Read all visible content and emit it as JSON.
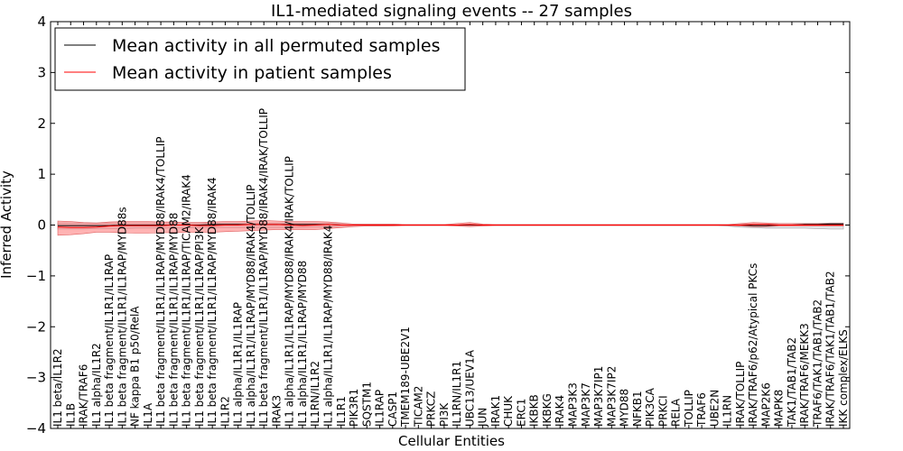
{
  "chart_data": {
    "type": "line",
    "title": "IL1-mediated signaling events -- 27 samples",
    "xlabel": "Cellular Entities",
    "ylabel": "Inferred Activity",
    "ylim": [
      -4,
      4
    ],
    "yticks": [
      -4,
      -3,
      -2,
      -1,
      0,
      1,
      2,
      3,
      4
    ],
    "ytick_labels": [
      "−4",
      "−3",
      "−2",
      "−1",
      "0",
      "1",
      "2",
      "3",
      "4"
    ],
    "legend_position": "top-left",
    "categories": [
      "IL1 beta/IL1R2",
      "IL1B",
      "IRAK/TRAF6",
      "IL1 alpha/IL1R2",
      "IL1 beta fragment/IL1R1/IL1RAP",
      "IL1 beta fragment/IL1R1/IL1RAP/MYD88s",
      "NF kappa B1 p50/RelA",
      "IL1A",
      "IL1 beta fragment/IL1R1/IL1RAP/MYD88/IRAK4/TOLLIP",
      "IL1 beta fragment/IL1R1/IL1RAP/MYD88",
      "IL1 beta fragment/IL1R1/IL1RAP/TICAM2/IRAK4",
      "IL1 beta fragment/IL1R1/IL1RAP/PI3K",
      "IL1 beta fragment/IL1R1/IL1RAP/MYD88/IRAK4",
      "IL1R2",
      "IL1 alpha/IL1R1/IL1RAP",
      "IL1 alpha/IL1R1/IL1RAP/MYD88/IRAK4/TOLLIP",
      "IL1 beta fragment/IL1R1/IL1RAP/MYD88/IRAK4/IRAK/TOLLIP",
      "IRAK3",
      "IL1 alpha/IL1R1/IL1RAP/MYD88/IRAK4/IRAK/TOLLIP",
      "IL1 alpha/IL1R1/IL1RAP/MYD88",
      "IL1RN/IL1R2",
      "IL1 alpha/IL1R1/IL1RAP/MYD88/IRAK4",
      "IL1R1",
      "PIK3R1",
      "SQSTM1",
      "IL1RAP",
      "CASP1",
      "TMEM189-UBE2V1",
      "TICAM2",
      "PRKCZ",
      "PI3K",
      "IL1RN/IL1R1",
      "UBC13/UEV1A",
      "JUN",
      "IRAK1",
      "CHUK",
      "ERC1",
      "IKBKB",
      "IKBKG",
      "IRAK4",
      "MAP3K3",
      "MAP3K7",
      "MAP3K7IP1",
      "MAP3K7IP2",
      "MYD88",
      "NFKB1",
      "PIK3CA",
      "PRKCI",
      "RELA",
      "TOLLIP",
      "TRAF6",
      "UBE2N",
      "IL1RN",
      "IRAK/TOLLIP",
      "IRAK/TRAF6/p62/Atypical PKCs",
      "MAP2K6",
      "MAPK8",
      "TAK1/TAB1/TAB2",
      "IRAK/TRAF6/MEKK3",
      "TRAF6/TAK1/TAB1/TAB2",
      "IRAK/TRAF6/TAK1/TAB1/TAB2",
      "IKK complex/ELKS"
    ],
    "series": [
      {
        "name": "Mean activity in all permuted samples",
        "color": "#000000",
        "values": [
          -0.01,
          -0.01,
          -0.01,
          -0.01,
          -0.01,
          0,
          0,
          0,
          0,
          0,
          0,
          0,
          0.01,
          0.01,
          0.01,
          0.01,
          0.01,
          0.01,
          0.01,
          0.01,
          0.01,
          0.01,
          0,
          0,
          0,
          0,
          0,
          0,
          0,
          0,
          0,
          0,
          0,
          0,
          0,
          0,
          0,
          0,
          0,
          0,
          0,
          0,
          0,
          0,
          0,
          0,
          0,
          0,
          0,
          0,
          0,
          0,
          0,
          0,
          -0.01,
          -0.01,
          0,
          0,
          0.01,
          0.01,
          0.02,
          0.02
        ],
        "band_upper": [
          0.04,
          0.04,
          0.04,
          0.04,
          0.04,
          0.04,
          0.04,
          0.04,
          0.04,
          0.04,
          0.04,
          0.04,
          0.04,
          0.04,
          0.04,
          0.04,
          0.04,
          0.04,
          0.04,
          0.04,
          0.04,
          0.04,
          0.03,
          0.02,
          0.02,
          0.02,
          0.02,
          0.01,
          0.01,
          0.01,
          0.01,
          0.01,
          0.01,
          0.01,
          0.01,
          0.01,
          0.01,
          0.01,
          0.01,
          0.01,
          0.01,
          0.01,
          0.01,
          0.01,
          0.01,
          0.01,
          0.01,
          0.01,
          0.01,
          0.01,
          0.01,
          0.01,
          0.01,
          0.02,
          0.02,
          0.02,
          0.02,
          0.02,
          0.03,
          0.03,
          0.04,
          0.04
        ],
        "band_lower": [
          -0.08,
          -0.08,
          -0.08,
          -0.07,
          -0.07,
          -0.07,
          -0.06,
          -0.06,
          -0.06,
          -0.06,
          -0.06,
          -0.05,
          -0.05,
          -0.05,
          -0.05,
          -0.05,
          -0.05,
          -0.05,
          -0.05,
          -0.05,
          -0.04,
          -0.04,
          -0.03,
          -0.02,
          -0.02,
          -0.02,
          -0.01,
          -0.01,
          -0.01,
          -0.01,
          -0.01,
          -0.01,
          -0.01,
          -0.01,
          -0.01,
          -0.01,
          -0.01,
          -0.01,
          -0.01,
          -0.01,
          -0.01,
          -0.01,
          -0.01,
          -0.01,
          -0.01,
          -0.01,
          -0.01,
          -0.01,
          -0.01,
          -0.01,
          -0.01,
          -0.01,
          -0.02,
          -0.04,
          -0.05,
          -0.06,
          -0.06,
          -0.06,
          -0.06,
          -0.07,
          -0.08,
          -0.08
        ],
        "band_color": "#c0c0c8"
      },
      {
        "name": "Mean activity in patient samples",
        "color": "#ff0000",
        "values": [
          -0.04,
          -0.05,
          -0.05,
          -0.04,
          -0.02,
          -0.01,
          -0.01,
          -0.01,
          -0.01,
          0,
          0,
          -0.01,
          -0.01,
          0,
          0,
          0.01,
          0.01,
          0.01,
          0,
          -0.01,
          0,
          0.01,
          0,
          0,
          0,
          0,
          0,
          0,
          0,
          0,
          0,
          0,
          0.01,
          0,
          0,
          0,
          0,
          0,
          0,
          0,
          0,
          0,
          0,
          0,
          0,
          0,
          0,
          0,
          0,
          0,
          0,
          0,
          0,
          0,
          0.01,
          0.01,
          0,
          0,
          0,
          0,
          0,
          0
        ],
        "band_upper": [
          0.08,
          0.07,
          0.05,
          0.04,
          0.06,
          0.07,
          0.07,
          0.07,
          0.06,
          0.06,
          0.05,
          0.05,
          0.06,
          0.07,
          0.07,
          0.08,
          0.09,
          0.08,
          0.07,
          0.07,
          0.07,
          0.06,
          0.04,
          0.02,
          0.02,
          0.02,
          0.02,
          0.01,
          0.01,
          0.01,
          0.01,
          0.03,
          0.05,
          0.02,
          0.01,
          0.01,
          0.01,
          0.01,
          0.01,
          0.01,
          0.01,
          0.01,
          0.01,
          0.01,
          0.01,
          0.01,
          0.01,
          0.01,
          0.01,
          0.01,
          0.01,
          0.01,
          0.01,
          0.03,
          0.05,
          0.04,
          0.03,
          0.03,
          0.03,
          0.03,
          0.03,
          0.03
        ],
        "band_lower": [
          -0.2,
          -0.19,
          -0.17,
          -0.14,
          -0.14,
          -0.15,
          -0.16,
          -0.16,
          -0.15,
          -0.15,
          -0.14,
          -0.14,
          -0.14,
          -0.13,
          -0.12,
          -0.11,
          -0.1,
          -0.09,
          -0.09,
          -0.09,
          -0.09,
          -0.07,
          -0.05,
          -0.03,
          -0.02,
          -0.02,
          -0.02,
          -0.01,
          -0.01,
          -0.01,
          -0.01,
          -0.02,
          -0.03,
          -0.02,
          -0.01,
          -0.01,
          -0.01,
          -0.01,
          -0.01,
          -0.01,
          -0.01,
          -0.01,
          -0.01,
          -0.01,
          -0.01,
          -0.01,
          -0.01,
          -0.01,
          -0.01,
          -0.01,
          -0.01,
          -0.01,
          -0.01,
          -0.02,
          -0.03,
          -0.03,
          -0.02,
          -0.02,
          -0.02,
          -0.02,
          -0.02,
          -0.02
        ],
        "band_color": "#ff8080"
      }
    ]
  }
}
